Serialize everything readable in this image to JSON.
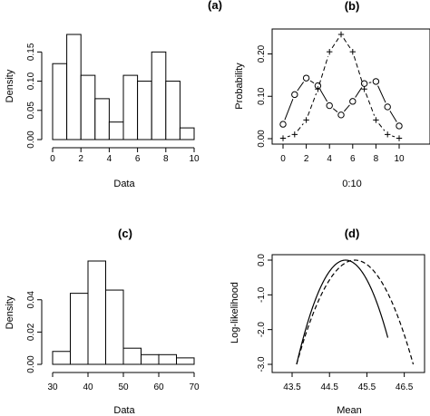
{
  "chart_data": [
    {
      "panel": "a",
      "type": "bar",
      "title": "(a)",
      "xlabel": "Data",
      "ylabel": "Density",
      "bin_edges": [
        0,
        1,
        2,
        3,
        4,
        5,
        6,
        7,
        8,
        9,
        10
      ],
      "values": [
        0.13,
        0.18,
        0.11,
        0.07,
        0.03,
        0.11,
        0.1,
        0.15,
        0.1,
        0.02
      ],
      "xlim": [
        0,
        10
      ],
      "ylim": [
        0,
        0.18
      ],
      "xticks": [
        0,
        2,
        4,
        6,
        8,
        10
      ],
      "xtick_labels": [
        "0",
        "2",
        "4",
        "6",
        "8",
        "10"
      ],
      "yticks": [
        0,
        0.05,
        0.1,
        0.15
      ],
      "ytick_labels": [
        "0.00",
        "0.05",
        "0.10",
        "0.15"
      ]
    },
    {
      "panel": "b",
      "type": "line",
      "title": "(b)",
      "xlabel": "0:10",
      "ylabel": "Probability",
      "x": [
        0,
        1,
        2,
        3,
        4,
        5,
        6,
        7,
        8,
        9,
        10
      ],
      "series": [
        {
          "marker": "circle",
          "line": "solid",
          "values": [
            0.034,
            0.104,
            0.143,
            0.125,
            0.078,
            0.056,
            0.088,
            0.13,
            0.135,
            0.075,
            0.03
          ]
        },
        {
          "marker": "plus",
          "line": "dashed",
          "values": [
            0.001,
            0.01,
            0.044,
            0.117,
            0.205,
            0.246,
            0.205,
            0.117,
            0.044,
            0.01,
            0.001
          ]
        }
      ],
      "xlim": [
        0,
        10
      ],
      "ylim": [
        0,
        0.246
      ],
      "xticks": [
        0,
        2,
        4,
        6,
        8,
        10
      ],
      "xtick_labels": [
        "0",
        "2",
        "4",
        "6",
        "8",
        "10"
      ],
      "yticks": [
        0,
        0.1,
        0.2
      ],
      "ytick_labels": [
        "0.00",
        "0.10",
        "0.20"
      ]
    },
    {
      "panel": "c",
      "type": "bar",
      "title": "(c)",
      "xlabel": "Data",
      "ylabel": "Density",
      "bin_edges": [
        30,
        35,
        40,
        45,
        50,
        55,
        60,
        65,
        70
      ],
      "values": [
        0.008,
        0.044,
        0.064,
        0.046,
        0.01,
        0.006,
        0.006,
        0.004
      ],
      "xlim": [
        30,
        70
      ],
      "ylim": [
        0,
        0.064
      ],
      "xticks": [
        30,
        40,
        50,
        60,
        70
      ],
      "xtick_labels": [
        "30",
        "40",
        "50",
        "60",
        "70"
      ],
      "yticks": [
        0,
        0.02,
        0.04
      ],
      "ytick_labels": [
        "0.00",
        "0.02",
        "0.04"
      ]
    },
    {
      "panel": "d",
      "type": "line",
      "title": "(d)",
      "xlabel": "Mean",
      "ylabel": "Log-likelihood",
      "series": [
        {
          "line": "solid",
          "curve": "parabola",
          "peak_x": 44.93,
          "peak_y": 0.0,
          "x_start": 43.62,
          "x_end": 46.06
        },
        {
          "line": "dashed",
          "curve": "parabola",
          "peak_x": 45.18,
          "peak_y": 0.0,
          "x_start": 43.62,
          "x_end": 46.74
        }
      ],
      "xlim": [
        43.5,
        46.8
      ],
      "ylim": [
        -3.0,
        0.0
      ],
      "xticks": [
        43.5,
        44.5,
        45.5,
        46.5
      ],
      "xtick_labels": [
        "43.5",
        "44.5",
        "45.5",
        "46.5"
      ],
      "yticks": [
        -3.0,
        -2.0,
        -1.0,
        0.0
      ],
      "ytick_labels": [
        "-3.0",
        "-2.0",
        "-1.0",
        "0.0"
      ]
    }
  ]
}
